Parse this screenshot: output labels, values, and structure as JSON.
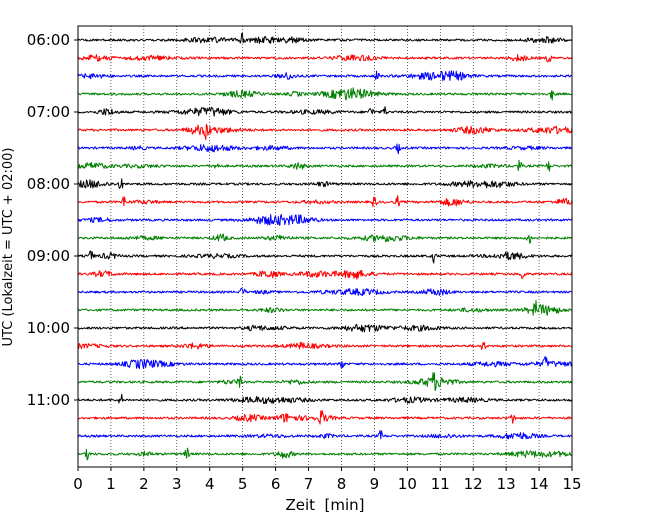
{
  "chart_data": {
    "type": "line",
    "title": "",
    "xlabel": "Zeit  [min]",
    "ylabel": "UTC (Lokalzeit = UTC + 02:00)",
    "xlim": [
      0,
      15
    ],
    "x_ticks": [
      0,
      1,
      2,
      3,
      4,
      5,
      6,
      7,
      8,
      9,
      10,
      11,
      12,
      13,
      14,
      15
    ],
    "y_tick_labels": [
      "06:00",
      "07:00",
      "08:00",
      "09:00",
      "10:00",
      "11:00"
    ],
    "grid": "vertical dotted",
    "trace_colors": [
      "#000000",
      "#ff0000",
      "#0000ff",
      "#008000"
    ],
    "traces": [
      {
        "start": "06:00",
        "color": "#000000",
        "events": [
          5.0
        ]
      },
      {
        "start": "06:15",
        "color": "#ff0000",
        "events": [
          14.3
        ]
      },
      {
        "start": "06:30",
        "color": "#0000ff",
        "events": [
          9.1
        ]
      },
      {
        "start": "06:45",
        "color": "#008000",
        "events": [
          14.4
        ]
      },
      {
        "start": "07:00",
        "color": "#000000",
        "events": [
          8.9,
          9.3
        ]
      },
      {
        "start": "07:15",
        "color": "#ff0000",
        "events": [
          3.9
        ]
      },
      {
        "start": "07:30",
        "color": "#0000ff",
        "events": [
          9.7
        ]
      },
      {
        "start": "07:45",
        "color": "#008000",
        "events": [
          4.2,
          13.4,
          14.3
        ]
      },
      {
        "start": "08:00",
        "color": "#000000",
        "events": [
          1.3
        ]
      },
      {
        "start": "08:15",
        "color": "#ff0000",
        "events": [
          1.4,
          9.0,
          9.7
        ]
      },
      {
        "start": "08:30",
        "color": "#0000ff",
        "events": []
      },
      {
        "start": "08:45",
        "color": "#008000",
        "events": [
          13.7
        ]
      },
      {
        "start": "09:00",
        "color": "#000000",
        "events": [
          0.4,
          10.8
        ]
      },
      {
        "start": "09:15",
        "color": "#ff0000",
        "events": [
          8.4,
          13.5
        ]
      },
      {
        "start": "09:30",
        "color": "#0000ff",
        "events": [
          5.0
        ]
      },
      {
        "start": "09:45",
        "color": "#008000",
        "events": [
          13.9
        ]
      },
      {
        "start": "10:00",
        "color": "#000000",
        "events": []
      },
      {
        "start": "10:15",
        "color": "#ff0000",
        "events": [
          12.3
        ]
      },
      {
        "start": "10:30",
        "color": "#0000ff",
        "events": [
          8.0,
          14.2
        ]
      },
      {
        "start": "10:45",
        "color": "#008000",
        "events": [
          4.9,
          10.8
        ]
      },
      {
        "start": "11:00",
        "color": "#000000",
        "events": [
          1.3
        ]
      },
      {
        "start": "11:15",
        "color": "#ff0000",
        "events": [
          7.4,
          13.2
        ]
      },
      {
        "start": "11:30",
        "color": "#0000ff",
        "events": [
          9.2
        ]
      },
      {
        "start": "11:45",
        "color": "#008000",
        "events": [
          0.3,
          3.3
        ]
      }
    ]
  }
}
